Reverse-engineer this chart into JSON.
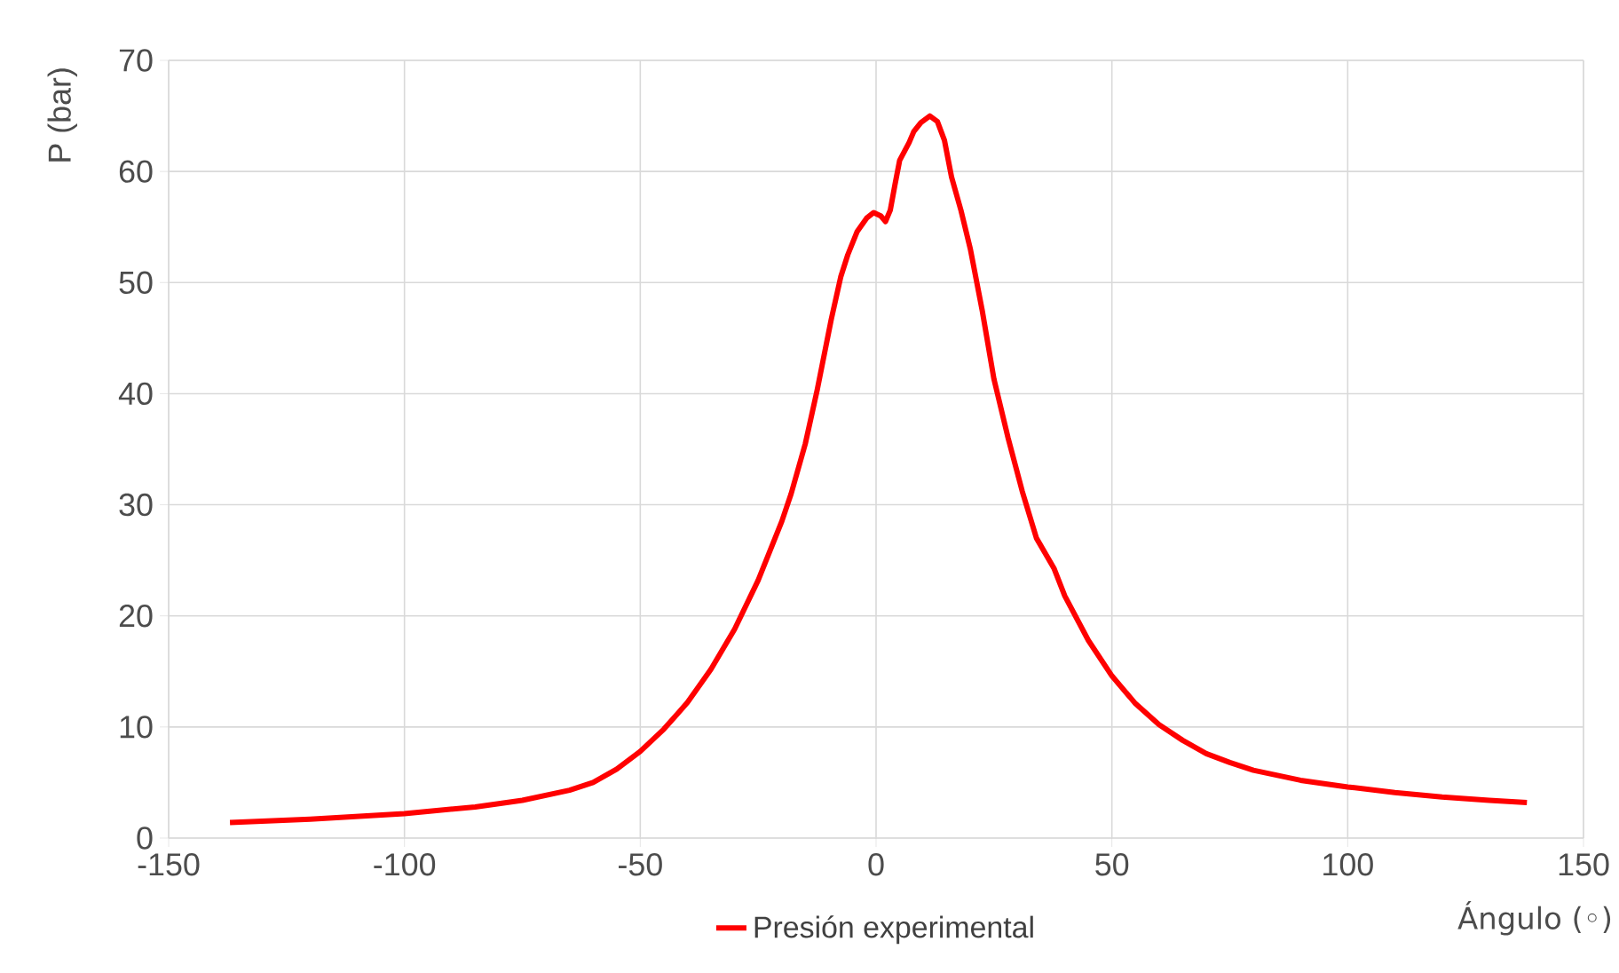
{
  "chart_data": {
    "type": "line",
    "xlabel": "Ángulo (◦)",
    "ylabel": "P (bar)",
    "xlim": [
      -150,
      150
    ],
    "xticks": [
      -150,
      -100,
      -50,
      0,
      50,
      100,
      150
    ],
    "ylim": [
      0,
      70
    ],
    "yticks": [
      0,
      10,
      20,
      30,
      40,
      50,
      60,
      70
    ],
    "grid": true,
    "legend": "bottom",
    "marker": "none",
    "line_style": "solid",
    "series": [
      {
        "name": "Presión experimental",
        "color": "#ff0000",
        "x": [
          -137,
          -120,
          -100,
          -85,
          -75,
          -65,
          -60,
          -55,
          -50,
          -45,
          -40,
          -35,
          -30,
          -25,
          -20,
          -18,
          -15,
          -12.5,
          -9.5,
          -7.5,
          -6,
          -4,
          -2,
          -0.5,
          1,
          2,
          3,
          4,
          5,
          6,
          7,
          8,
          9.5,
          11.4,
          13,
          14.5,
          16,
          18,
          20,
          22.5,
          25,
          28,
          31,
          34,
          37.7,
          40,
          45,
          50,
          55,
          60,
          65,
          70,
          75,
          80,
          90,
          100,
          110,
          120,
          130,
          138
        ],
        "values": [
          1.4,
          1.7,
          2.2,
          2.8,
          3.4,
          4.3,
          5,
          6.2,
          7.8,
          9.8,
          12.2,
          15.2,
          18.8,
          23.2,
          28.5,
          31,
          35.5,
          40.3,
          46.7,
          50.5,
          52.5,
          54.6,
          55.8,
          56.3,
          56,
          55.5,
          56.5,
          58.8,
          61,
          61.8,
          62.6,
          63.6,
          64.4,
          65,
          64.5,
          62.8,
          59.5,
          56.5,
          53,
          47.5,
          41.3,
          36,
          31.2,
          27,
          24.3,
          21.8,
          17.8,
          14.6,
          12.1,
          10.2,
          8.8,
          7.6,
          6.8,
          6.1,
          5.2,
          4.6,
          4.1,
          3.7,
          3.4,
          3.2
        ]
      }
    ]
  }
}
